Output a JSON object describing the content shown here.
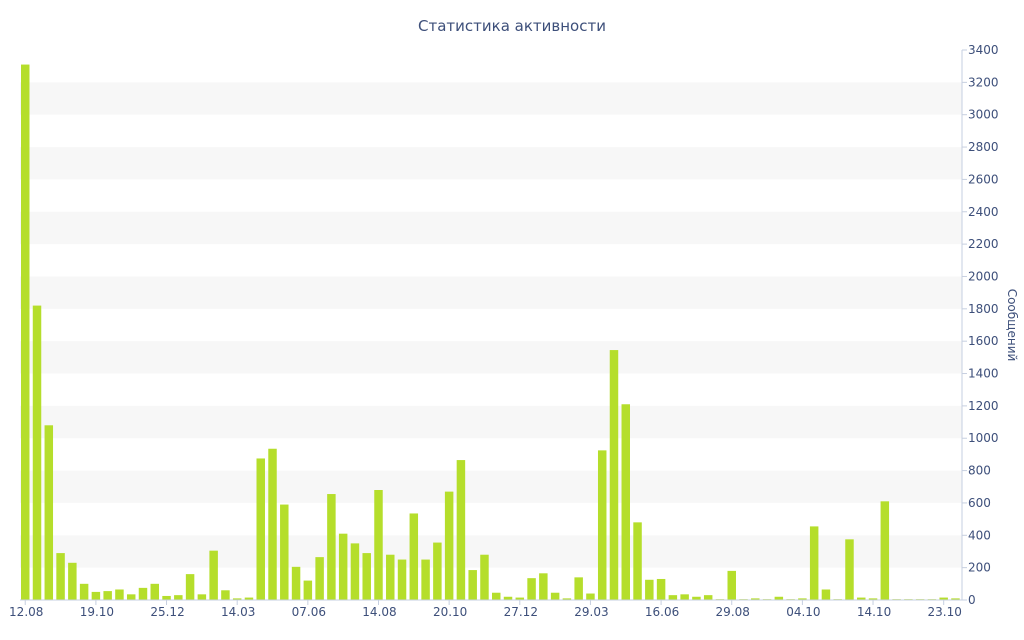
{
  "chart_data": {
    "type": "bar",
    "title": "Статистика активности",
    "xlabel": "",
    "ylabel": "Сообщений",
    "y_axis_side": "right",
    "ylim": [
      0,
      3400
    ],
    "yticks": [
      0,
      200,
      400,
      600,
      800,
      1000,
      1200,
      1400,
      1600,
      1800,
      2000,
      2200,
      2400,
      2600,
      2800,
      3000,
      3200,
      3400
    ],
    "grid": "alternating horizontal bands",
    "legend": "none",
    "bar_color": "#b5de2b",
    "band_color": "#f7f7f7",
    "text_color": "#3d4f7a",
    "x_tick_labels": [
      {
        "label": "12.08",
        "index": 0
      },
      {
        "label": "19.10",
        "index": 6
      },
      {
        "label": "25.12",
        "index": 12
      },
      {
        "label": "14.03",
        "index": 18
      },
      {
        "label": "07.06",
        "index": 24
      },
      {
        "label": "14.08",
        "index": 30
      },
      {
        "label": "20.10",
        "index": 36
      },
      {
        "label": "27.12",
        "index": 42
      },
      {
        "label": "29.03",
        "index": 48
      },
      {
        "label": "16.06",
        "index": 54
      },
      {
        "label": "29.08",
        "index": 60
      },
      {
        "label": "04.10",
        "index": 66
      },
      {
        "label": "14.10",
        "index": 72
      },
      {
        "label": "23.10",
        "index": 78
      }
    ],
    "values": [
      3310,
      1820,
      1080,
      290,
      230,
      100,
      50,
      55,
      65,
      35,
      75,
      100,
      25,
      30,
      160,
      35,
      305,
      60,
      10,
      15,
      875,
      935,
      590,
      205,
      120,
      265,
      655,
      410,
      350,
      290,
      680,
      280,
      250,
      535,
      250,
      355,
      670,
      865,
      185,
      280,
      45,
      20,
      15,
      135,
      165,
      45,
      10,
      140,
      40,
      925,
      1545,
      1210,
      480,
      125,
      130,
      30,
      35,
      20,
      30,
      5,
      180,
      5,
      10,
      5,
      20,
      5,
      10,
      455,
      65,
      5,
      375,
      15,
      10,
      610,
      5,
      5,
      5,
      5,
      15,
      10
    ]
  }
}
